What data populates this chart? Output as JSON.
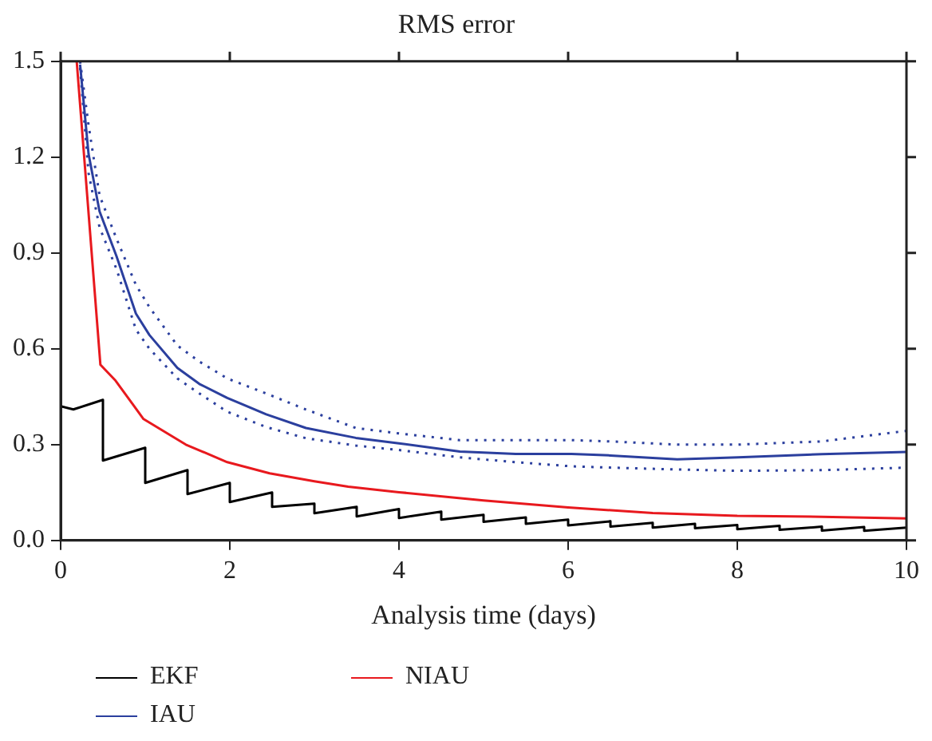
{
  "chart_data": {
    "type": "line",
    "title": "RMS error",
    "xlabel": "Analysis time (days)",
    "xlim": [
      0,
      10
    ],
    "xticks": [
      0,
      2,
      4,
      6,
      8,
      10
    ],
    "ylim": [
      0,
      1.5
    ],
    "yticks": [
      {
        "value": 0,
        "label": "0.0"
      },
      {
        "value": 0.3,
        "label": "0.3"
      },
      {
        "value": 0.6,
        "label": "0.6"
      },
      {
        "value": 0.9,
        "label": "0.9"
      },
      {
        "value": 1.2,
        "label": "1.2"
      },
      {
        "value": 1.5,
        "label": "1.5"
      }
    ],
    "grid": false,
    "legend": "bottom",
    "marker": "none",
    "line_style": "solid",
    "series": [
      {
        "name": "EKF",
        "color": "#000000",
        "x": [
          0,
          0.15,
          0.5,
          0.5,
          1.0,
          1.0,
          1.5,
          1.5,
          2.0,
          2.0,
          2.5,
          2.5,
          3.0,
          3.0,
          3.5,
          3.5,
          4.0,
          4.0,
          4.5,
          4.5,
          5.0,
          5.0,
          5.5,
          5.5,
          6.0,
          6.0,
          6.5,
          6.5,
          7.0,
          7.0,
          7.5,
          7.5,
          8.0,
          8.0,
          8.5,
          8.5,
          9.0,
          9.0,
          9.5,
          9.5,
          10
        ],
        "values": [
          0.42,
          0.41,
          0.44,
          0.25,
          0.29,
          0.18,
          0.22,
          0.145,
          0.18,
          0.12,
          0.15,
          0.105,
          0.115,
          0.085,
          0.105,
          0.075,
          0.098,
          0.07,
          0.09,
          0.065,
          0.08,
          0.058,
          0.072,
          0.052,
          0.065,
          0.047,
          0.06,
          0.043,
          0.055,
          0.04,
          0.052,
          0.038,
          0.048,
          0.035,
          0.046,
          0.033,
          0.043,
          0.031,
          0.042,
          0.03,
          0.04
        ]
      },
      {
        "name": "IAU",
        "color": "#2b3f9e",
        "x": [
          0.23,
          0.33,
          0.46,
          0.66,
          0.89,
          1.05,
          1.38,
          1.64,
          1.97,
          2.43,
          2.9,
          3.49,
          4,
          4.72,
          5.38,
          6.04,
          6.5,
          7.29,
          8.01,
          9,
          10
        ],
        "values": [
          1.49,
          1.21,
          1.03,
          0.89,
          0.71,
          0.643,
          0.54,
          0.49,
          0.446,
          0.395,
          0.352,
          0.321,
          0.304,
          0.278,
          0.271,
          0.271,
          0.266,
          0.254,
          0.26,
          0.27,
          0.277
        ]
      },
      {
        "color": "#2b3f9e",
        "line_style": "dotted",
        "x": [
          0.23,
          0.33,
          0.46,
          0.66,
          0.89,
          1.05,
          1.38,
          1.64,
          1.97,
          2.43,
          2.9,
          3.49,
          4,
          4.72,
          5.38,
          6.04,
          6.5,
          7.29,
          8.01,
          9,
          10
        ],
        "values": [
          1.5,
          1.3,
          1.08,
          0.945,
          0.8,
          0.73,
          0.61,
          0.56,
          0.507,
          0.46,
          0.41,
          0.352,
          0.335,
          0.314,
          0.314,
          0.314,
          0.31,
          0.3,
          0.3,
          0.31,
          0.343
        ]
      },
      {
        "color": "#2b3f9e",
        "line_style": "dotted",
        "x": [
          0.23,
          0.33,
          0.46,
          0.66,
          0.89,
          1.05,
          1.38,
          1.64,
          1.97,
          2.43,
          2.9,
          3.49,
          4,
          4.72,
          5.38,
          6.04,
          6.5,
          7.29,
          8.01,
          9,
          10
        ],
        "values": [
          1.48,
          1.15,
          0.98,
          0.85,
          0.66,
          0.6,
          0.507,
          0.46,
          0.403,
          0.355,
          0.32,
          0.297,
          0.283,
          0.26,
          0.245,
          0.232,
          0.228,
          0.222,
          0.218,
          0.22,
          0.228
        ]
      },
      {
        "name": "NIAU",
        "color": "#e8191e",
        "x": [
          0.19,
          0.47,
          0.65,
          0.98,
          1.48,
          1.97,
          2.47,
          3.0,
          3.4,
          4,
          5,
          6,
          7,
          8,
          9,
          10
        ],
        "values": [
          1.5,
          0.55,
          0.5,
          0.38,
          0.3,
          0.245,
          0.21,
          0.185,
          0.168,
          0.151,
          0.125,
          0.103,
          0.086,
          0.077,
          0.074,
          0.069
        ]
      }
    ]
  }
}
